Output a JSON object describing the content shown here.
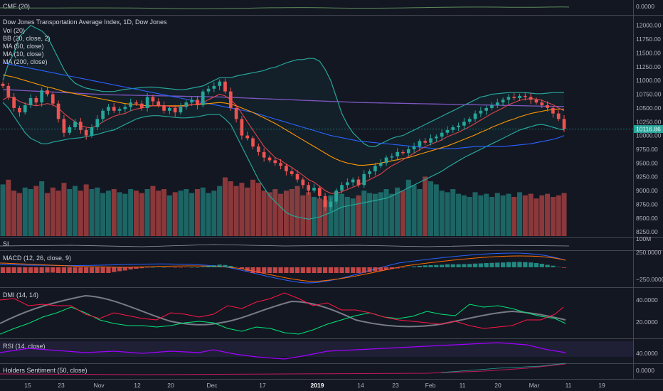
{
  "title": "Dow Jones Transportation Average Index, 1D, Dow Jones",
  "legend": {
    "vol": "Vol (20)",
    "bb": "BB (20, close, 2)",
    "ma50": "MA (50, close)",
    "ma10": "MA (10, close)",
    "ma200": "MA (200, close)"
  },
  "last_price_label": "10116.86",
  "colors": {
    "background": "#131722",
    "up": "#26a69a",
    "down": "#ef5350",
    "bb": "#26a69a",
    "ma10": "#e0444a",
    "ma50": "#ff9800",
    "ma200": "#7e57c2",
    "ma100": "#2962ff"
  },
  "panes": {
    "cmf": {
      "label": "CMF (20)",
      "ticks": [
        "0.0000"
      ]
    },
    "si": {
      "label": "SI",
      "ticks": [
        "100M"
      ]
    },
    "macd": {
      "label": "MACD (12, 26, close, 9)",
      "ticks": [
        "250.0000",
        "−250.0000"
      ]
    },
    "dmi": {
      "label": "DMI (14, 14)",
      "ticks": [
        "40.0000",
        "20.0000"
      ]
    },
    "rsi": {
      "label": "RSI (14, close)",
      "ticks": [
        "40.0000"
      ]
    },
    "hs": {
      "label": "Holders Sentiment (50, close)",
      "ticks": [
        "0.0000"
      ]
    }
  },
  "x_axis_labels": [
    {
      "label": "15",
      "bold": false
    },
    {
      "label": "23",
      "bold": false
    },
    {
      "label": "Nov",
      "bold": false
    },
    {
      "label": "12",
      "bold": false
    },
    {
      "label": "20",
      "bold": false
    },
    {
      "label": "Dec",
      "bold": false
    },
    {
      "label": "17",
      "bold": false
    },
    {
      "label": "2019",
      "bold": true
    },
    {
      "label": "14",
      "bold": false
    },
    {
      "label": "23",
      "bold": false
    },
    {
      "label": "Feb",
      "bold": false
    },
    {
      "label": "11",
      "bold": false
    },
    {
      "label": "20",
      "bold": false
    },
    {
      "label": "Mar",
      "bold": false
    },
    {
      "label": "11",
      "bold": false
    },
    {
      "label": "19",
      "bold": false
    }
  ],
  "chart_data": {
    "type": "candlestick",
    "y_ticks": [
      8250,
      8500,
      8750,
      9000,
      9250,
      9500,
      9750,
      10000,
      10250,
      10500,
      10750,
      11000,
      11250,
      11500,
      11750,
      12000
    ],
    "ylim": [
      8200,
      12100
    ],
    "close": [
      10900,
      10700,
      10500,
      10420,
      10550,
      10680,
      10600,
      10820,
      10750,
      10580,
      10300,
      10050,
      10150,
      10250,
      10100,
      10000,
      10150,
      10300,
      10450,
      10520,
      10450,
      10480,
      10520,
      10600,
      10580,
      10500,
      10700,
      10620,
      10550,
      10450,
      10500,
      10420,
      10520,
      10600,
      10650,
      10550,
      10800,
      10850,
      10900,
      10980,
      10800,
      10500,
      10300,
      10000,
      9950,
      9800,
      9700,
      9600,
      9550,
      9500,
      9450,
      9350,
      9300,
      9200,
      9100,
      9000,
      9050,
      8900,
      8700,
      8800,
      9000,
      9100,
      9150,
      9200,
      9100,
      9300,
      9350,
      9450,
      9500,
      9600,
      9620,
      9700,
      9680,
      9750,
      9800,
      9900,
      9870,
      9950,
      9980,
      10050,
      10100,
      10150,
      10180,
      10250,
      10300,
      10400,
      10450,
      10500,
      10550,
      10600,
      10650,
      10700,
      10680,
      10720,
      10700,
      10650,
      10600,
      10550,
      10500,
      10400,
      10300,
      10116.86
    ],
    "volume": [
      66,
      72,
      58,
      55,
      62,
      60,
      64,
      70,
      55,
      62,
      58,
      68,
      60,
      64,
      58,
      66,
      60,
      62,
      55,
      58,
      60,
      56,
      54,
      60,
      58,
      55,
      60,
      64,
      58,
      60,
      52,
      56,
      58,
      60,
      55,
      60,
      62,
      55,
      58,
      64,
      75,
      70,
      64,
      68,
      62,
      72,
      68,
      58,
      56,
      60,
      54,
      58,
      60,
      64,
      52,
      56,
      50,
      48,
      46,
      52,
      56,
      54,
      50,
      48,
      52,
      58,
      55,
      54,
      56,
      60,
      54,
      62,
      58,
      72,
      65,
      60,
      76,
      70,
      66,
      58,
      56,
      60,
      54,
      52,
      50,
      56,
      52,
      54,
      50,
      55,
      52,
      54,
      50,
      56,
      52,
      54,
      48,
      52,
      54,
      50,
      52,
      55
    ],
    "ma10": [
      10650,
      10700,
      10680,
      10620,
      10580,
      10560,
      10540,
      10560,
      10580,
      10560,
      10500,
      10400,
      10320,
      10250,
      10180,
      10150,
      10140,
      10180,
      10250,
      10300,
      10350,
      10380,
      10400,
      10450,
      10480,
      10500,
      10520,
      10540,
      10550,
      10540,
      10530,
      10520,
      10520,
      10540,
      10560,
      10560,
      10600,
      10650,
      10700,
      10750,
      10720,
      10650,
      10550,
      10400,
      10250,
      10100,
      9950,
      9800,
      9700,
      9600,
      9550,
      9480,
      9420,
      9350,
      9280,
      9200,
      9150,
      9080,
      9000,
      8950,
      8950,
      8980,
      9020,
      9060,
      9100,
      9150,
      9200,
      9250,
      9300,
      9380,
      9450,
      9500,
      9560,
      9620,
      9680,
      9740,
      9800,
      9840,
      9880,
      9920,
      9980,
      10020,
      10060,
      10110,
      10160,
      10220,
      10280,
      10340,
      10400,
      10450,
      10500,
      10560,
      10600,
      10640,
      10660,
      10670,
      10660,
      10640,
      10600,
      10560,
      10500,
      10450
    ],
    "ma50": [
      11100,
      11080,
      11060,
      11030,
      11000,
      10970,
      10940,
      10910,
      10880,
      10860,
      10830,
      10800,
      10780,
      10760,
      10740,
      10720,
      10700,
      10680,
      10660,
      10640,
      10620,
      10600,
      10580,
      10570,
      10560,
      10550,
      10540,
      10540,
      10540,
      10540,
      10540,
      10540,
      10540,
      10550,
      10560,
      10560,
      10570,
      10580,
      10590,
      10600,
      10590,
      10570,
      10540,
      10500,
      10460,
      10420,
      10370,
      10320,
      10270,
      10220,
      10160,
      10100,
      10040,
      9980,
      9920,
      9860,
      9800,
      9740,
      9680,
      9620,
      9570,
      9530,
      9500,
      9480,
      9460,
      9460,
      9470,
      9480,
      9500,
      9520,
      9540,
      9560,
      9580,
      9600,
      9630,
      9660,
      9690,
      9720,
      9750,
      9780,
      9810,
      9850,
      9890,
      9930,
      9970,
      10010,
      10060,
      10100,
      10150,
      10190,
      10230,
      10270,
      10300,
      10340,
      10370,
      10400,
      10420,
      10440,
      10460,
      10470,
      10480,
      10480
    ],
    "ma100": [
      11320,
      11300,
      11280,
      11260,
      11240,
      11220,
      11200,
      11180,
      11160,
      11140,
      11120,
      11100,
      11080,
      11060,
      11040,
      11020,
      11000,
      10980,
      10960,
      10940,
      10920,
      10900,
      10880,
      10860,
      10840,
      10820,
      10800,
      10780,
      10760,
      10740,
      10720,
      10700,
      10680,
      10660,
      10640,
      10620,
      10600,
      10580,
      10560,
      10540,
      10520,
      10500,
      10480,
      10460,
      10440,
      10420,
      10390,
      10360,
      10330,
      10300,
      10270,
      10240,
      10210,
      10180,
      10150,
      10120,
      10090,
      10060,
      10030,
      10000,
      9980,
      9960,
      9940,
      9920,
      9900,
      9890,
      9880,
      9870,
      9860,
      9850,
      9840,
      9830,
      9820,
      9810,
      9800,
      9790,
      9780,
      9770,
      9760,
      9760,
      9760,
      9760,
      9770,
      9780,
      9790,
      9800,
      9800,
      9800,
      9800,
      9800,
      9800,
      9810,
      9820,
      9830,
      9840,
      9850,
      9870,
      9890,
      9910,
      9930,
      9960,
      10000
    ],
    "ma200": [
      10830,
      10830,
      10825,
      10820,
      10815,
      10810,
      10805,
      10800,
      10795,
      10790,
      10785,
      10780,
      10775,
      10770,
      10765,
      10760,
      10755,
      10750,
      10745,
      10740,
      10738,
      10736,
      10734,
      10732,
      10730,
      10728,
      10726,
      10724,
      10722,
      10720,
      10718,
      10716,
      10714,
      10712,
      10710,
      10708,
      10706,
      10704,
      10702,
      10700,
      10696,
      10692,
      10688,
      10684,
      10680,
      10676,
      10672,
      10668,
      10664,
      10660,
      10656,
      10652,
      10648,
      10644,
      10640,
      10636,
      10632,
      10628,
      10624,
      10620,
      10616,
      10612,
      10608,
      10604,
      10600,
      10598,
      10596,
      10594,
      10592,
      10590,
      10588,
      10586,
      10584,
      10582,
      10580,
      10578,
      10576,
      10574,
      10572,
      10570,
      10568,
      10566,
      10564,
      10562,
      10560,
      10558,
      10556,
      10554,
      10552,
      10550,
      10548,
      10546,
      10544,
      10542,
      10540,
      10538,
      10536,
      10534,
      10532,
      10530,
      10528,
      10526
    ],
    "bb_upper": [
      11000,
      11300,
      11500,
      11800,
      11900,
      12000,
      11950,
      11900,
      11800,
      11600,
      11400,
      11200,
      11050,
      10950,
      10900,
      10860,
      10840,
      10820,
      10800,
      10800,
      10800,
      10820,
      10840,
      10850,
      10860,
      10870,
      10880,
      10880,
      10870,
      10860,
      10850,
      10840,
      10830,
      10840,
      10860,
      10880,
      10900,
      10950,
      11000,
      11050,
      11050,
      11050,
      11080,
      11100,
      11120,
      11140,
      11160,
      11180,
      11220,
      11240,
      11280,
      11320,
      11350,
      11380,
      11380,
      11400,
      11400,
      11350,
      11200,
      11000,
      10700,
      10400,
      10200,
      10050,
      9950,
      9850,
      9800,
      9800,
      9850,
      9900,
      9950,
      9980,
      10000,
      10050,
      10100,
      10150,
      10200,
      10250,
      10300,
      10350,
      10400,
      10450,
      10500,
      10550,
      10600,
      10650,
      10700,
      10720,
      10750,
      10760,
      10770,
      10780,
      10780,
      10780,
      10780,
      10770,
      10760,
      10760,
      10770,
      10780,
      10780,
      10780
    ],
    "bb_lower": [
      10600,
      10500,
      10350,
      10200,
      10050,
      9950,
      9900,
      9850,
      9850,
      9880,
      9900,
      9920,
      9940,
      9950,
      9960,
      9980,
      10000,
      10020,
      10050,
      10080,
      10100,
      10150,
      10200,
      10250,
      10300,
      10330,
      10350,
      10360,
      10360,
      10350,
      10340,
      10330,
      10320,
      10320,
      10330,
      10340,
      10360,
      10380,
      10380,
      10380,
      10300,
      10200,
      10000,
      9800,
      9600,
      9400,
      9200,
      9050,
      8900,
      8800,
      8700,
      8600,
      8550,
      8520,
      8500,
      8480,
      8500,
      8520,
      8560,
      8600,
      8650,
      8700,
      8720,
      8740,
      8760,
      8780,
      8800,
      8820,
      8840,
      8860,
      8900,
      8950,
      9000,
      9050,
      9100,
      9150,
      9200,
      9250,
      9300,
      9350,
      9420,
      9480,
      9540,
      9600,
      9650,
      9700,
      9750,
      9800,
      9850,
      9900,
      9950,
      10000,
      10050,
      10100,
      10130,
      10160,
      10190,
      10200,
      10180,
      10150,
      10120,
      10100
    ]
  }
}
